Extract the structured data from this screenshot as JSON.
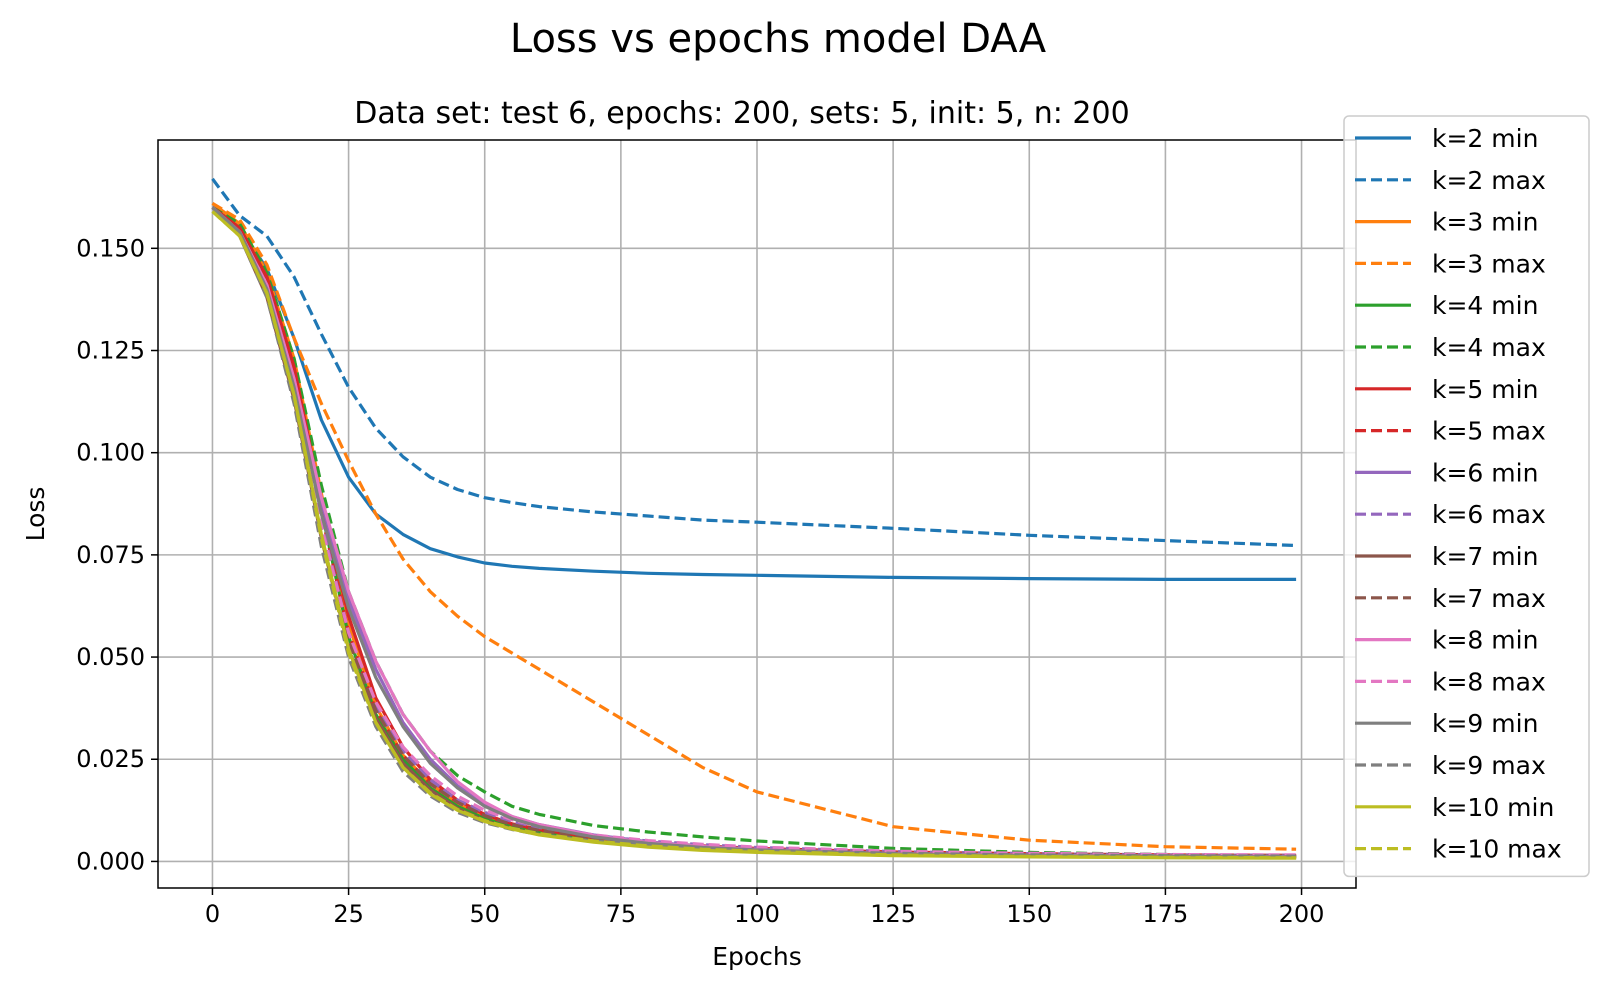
{
  "chart_data": {
    "type": "line",
    "title": "Loss vs epochs model DAA",
    "subtitle": "Data set: test 6, epochs: 200, sets: 5, init: 5, n: 200",
    "xlabel": "Epochs",
    "ylabel": "Loss",
    "xlim": [
      -10,
      210
    ],
    "ylim": [
      -0.0065,
      0.1765
    ],
    "xticks": [
      0,
      25,
      50,
      75,
      100,
      125,
      150,
      175,
      200
    ],
    "yticks": [
      0.0,
      0.025,
      0.05,
      0.075,
      0.1,
      0.125,
      0.15
    ],
    "ytick_labels": [
      "0.000",
      "0.025",
      "0.050",
      "0.075",
      "0.100",
      "0.125",
      "0.150"
    ],
    "grid": true,
    "legend_position": "upper-right outside axes",
    "x": [
      0,
      5,
      10,
      15,
      20,
      25,
      30,
      35,
      40,
      45,
      50,
      55,
      60,
      70,
      80,
      90,
      100,
      125,
      150,
      175,
      199
    ],
    "series": [
      {
        "name": "k=2 min",
        "color": "#1f77b4",
        "dash": false,
        "values": [
          0.16,
          0.155,
          0.145,
          0.128,
          0.108,
          0.094,
          0.085,
          0.08,
          0.0765,
          0.0745,
          0.073,
          0.0722,
          0.0717,
          0.071,
          0.0705,
          0.0702,
          0.07,
          0.0695,
          0.0692,
          0.069,
          0.069
        ]
      },
      {
        "name": "k=2 max",
        "color": "#1f77b4",
        "dash": true,
        "values": [
          0.167,
          0.158,
          0.153,
          0.143,
          0.129,
          0.116,
          0.106,
          0.099,
          0.094,
          0.091,
          0.089,
          0.0878,
          0.0868,
          0.0855,
          0.0845,
          0.0835,
          0.083,
          0.0815,
          0.0798,
          0.0785,
          0.0773
        ]
      },
      {
        "name": "k=3 min",
        "color": "#ff7f0e",
        "dash": false,
        "values": [
          0.161,
          0.156,
          0.144,
          0.123,
          0.09,
          0.058,
          0.038,
          0.026,
          0.019,
          0.014,
          0.011,
          0.009,
          0.0075,
          0.0055,
          0.0042,
          0.0034,
          0.0028,
          0.0019,
          0.0015,
          0.0013,
          0.0012
        ]
      },
      {
        "name": "k=3 max",
        "color": "#ff7f0e",
        "dash": true,
        "values": [
          0.161,
          0.157,
          0.146,
          0.128,
          0.112,
          0.098,
          0.085,
          0.074,
          0.066,
          0.06,
          0.055,
          0.051,
          0.047,
          0.039,
          0.031,
          0.023,
          0.017,
          0.0085,
          0.0052,
          0.0036,
          0.003
        ]
      },
      {
        "name": "k=4 min",
        "color": "#2ca02c",
        "dash": false,
        "values": [
          0.16,
          0.155,
          0.143,
          0.12,
          0.086,
          0.055,
          0.036,
          0.025,
          0.018,
          0.0135,
          0.0105,
          0.0085,
          0.0072,
          0.0053,
          0.004,
          0.0032,
          0.0026,
          0.0018,
          0.0015,
          0.0013,
          0.0012
        ]
      },
      {
        "name": "k=4 max",
        "color": "#2ca02c",
        "dash": true,
        "values": [
          0.16,
          0.156,
          0.144,
          0.123,
          0.092,
          0.066,
          0.049,
          0.036,
          0.027,
          0.021,
          0.017,
          0.0135,
          0.0115,
          0.0088,
          0.0072,
          0.006,
          0.005,
          0.0032,
          0.0022,
          0.0017,
          0.0014
        ]
      },
      {
        "name": "k=5 min",
        "color": "#d62728",
        "dash": false,
        "values": [
          0.16,
          0.155,
          0.143,
          0.121,
          0.088,
          0.06,
          0.04,
          0.028,
          0.02,
          0.015,
          0.0115,
          0.0092,
          0.0078,
          0.0058,
          0.0044,
          0.0035,
          0.0029,
          0.002,
          0.0016,
          0.0014,
          0.0013
        ]
      },
      {
        "name": "k=5 max",
        "color": "#d62728",
        "dash": true,
        "values": [
          0.16,
          0.155,
          0.142,
          0.119,
          0.085,
          0.056,
          0.037,
          0.026,
          0.019,
          0.0145,
          0.0112,
          0.009,
          0.0077,
          0.0058,
          0.0046,
          0.0038,
          0.0032,
          0.0023,
          0.0019,
          0.0016,
          0.0015
        ]
      },
      {
        "name": "k=6 min",
        "color": "#9467bd",
        "dash": false,
        "values": [
          0.16,
          0.154,
          0.141,
          0.118,
          0.088,
          0.064,
          0.047,
          0.034,
          0.025,
          0.0185,
          0.014,
          0.011,
          0.009,
          0.0065,
          0.0048,
          0.0037,
          0.003,
          0.002,
          0.0015,
          0.0013,
          0.0012
        ]
      },
      {
        "name": "k=6 max",
        "color": "#9467bd",
        "dash": true,
        "values": [
          0.16,
          0.154,
          0.14,
          0.116,
          0.083,
          0.056,
          0.038,
          0.027,
          0.02,
          0.015,
          0.012,
          0.0098,
          0.0083,
          0.0063,
          0.005,
          0.0041,
          0.0034,
          0.0024,
          0.0019,
          0.0016,
          0.0015
        ]
      },
      {
        "name": "k=7 min",
        "color": "#8c564b",
        "dash": false,
        "values": [
          0.16,
          0.153,
          0.138,
          0.113,
          0.079,
          0.052,
          0.035,
          0.024,
          0.0175,
          0.013,
          0.01,
          0.008,
          0.0066,
          0.0048,
          0.0036,
          0.0028,
          0.0023,
          0.0015,
          0.0012,
          0.001,
          0.0009
        ]
      },
      {
        "name": "k=7 max",
        "color": "#8c564b",
        "dash": true,
        "values": [
          0.16,
          0.154,
          0.14,
          0.116,
          0.082,
          0.054,
          0.037,
          0.026,
          0.019,
          0.0145,
          0.0112,
          0.009,
          0.0076,
          0.0056,
          0.0043,
          0.0035,
          0.0029,
          0.002,
          0.0016,
          0.0014,
          0.0013
        ]
      },
      {
        "name": "k=8 min",
        "color": "#e377c2",
        "dash": false,
        "values": [
          0.16,
          0.154,
          0.141,
          0.118,
          0.089,
          0.066,
          0.049,
          0.036,
          0.027,
          0.0195,
          0.0145,
          0.011,
          0.009,
          0.0063,
          0.0046,
          0.0036,
          0.0029,
          0.0019,
          0.0015,
          0.0013,
          0.0012
        ]
      },
      {
        "name": "k=8 max",
        "color": "#e377c2",
        "dash": true,
        "values": [
          0.16,
          0.154,
          0.14,
          0.115,
          0.082,
          0.056,
          0.039,
          0.028,
          0.021,
          0.016,
          0.0125,
          0.0102,
          0.0086,
          0.0065,
          0.0051,
          0.0042,
          0.0035,
          0.0025,
          0.002,
          0.0017,
          0.0016
        ]
      },
      {
        "name": "k=9 min",
        "color": "#7f7f7f",
        "dash": false,
        "values": [
          0.16,
          0.154,
          0.14,
          0.116,
          0.085,
          0.062,
          0.045,
          0.033,
          0.024,
          0.018,
          0.0135,
          0.0105,
          0.0085,
          0.006,
          0.0044,
          0.0034,
          0.0028,
          0.0018,
          0.0014,
          0.0012,
          0.0011
        ]
      },
      {
        "name": "k=9 max",
        "color": "#7f7f7f",
        "dash": true,
        "values": [
          0.16,
          0.153,
          0.138,
          0.112,
          0.077,
          0.05,
          0.033,
          0.022,
          0.016,
          0.012,
          0.0095,
          0.0078,
          0.0066,
          0.005,
          0.004,
          0.0033,
          0.0028,
          0.002,
          0.0016,
          0.0014,
          0.0013
        ]
      },
      {
        "name": "k=10 min",
        "color": "#bcbd22",
        "dash": false,
        "values": [
          0.159,
          0.153,
          0.139,
          0.114,
          0.08,
          0.052,
          0.034,
          0.023,
          0.0165,
          0.0125,
          0.0098,
          0.0079,
          0.0065,
          0.0047,
          0.0035,
          0.0027,
          0.0022,
          0.0014,
          0.0011,
          0.0009,
          0.0008
        ]
      },
      {
        "name": "k=10 max",
        "color": "#bcbd22",
        "dash": true,
        "values": [
          0.159,
          0.153,
          0.139,
          0.114,
          0.079,
          0.051,
          0.034,
          0.023,
          0.0168,
          0.0127,
          0.01,
          0.0081,
          0.0068,
          0.005,
          0.0038,
          0.003,
          0.0025,
          0.0016,
          0.0012,
          0.001,
          0.0009
        ]
      }
    ]
  }
}
